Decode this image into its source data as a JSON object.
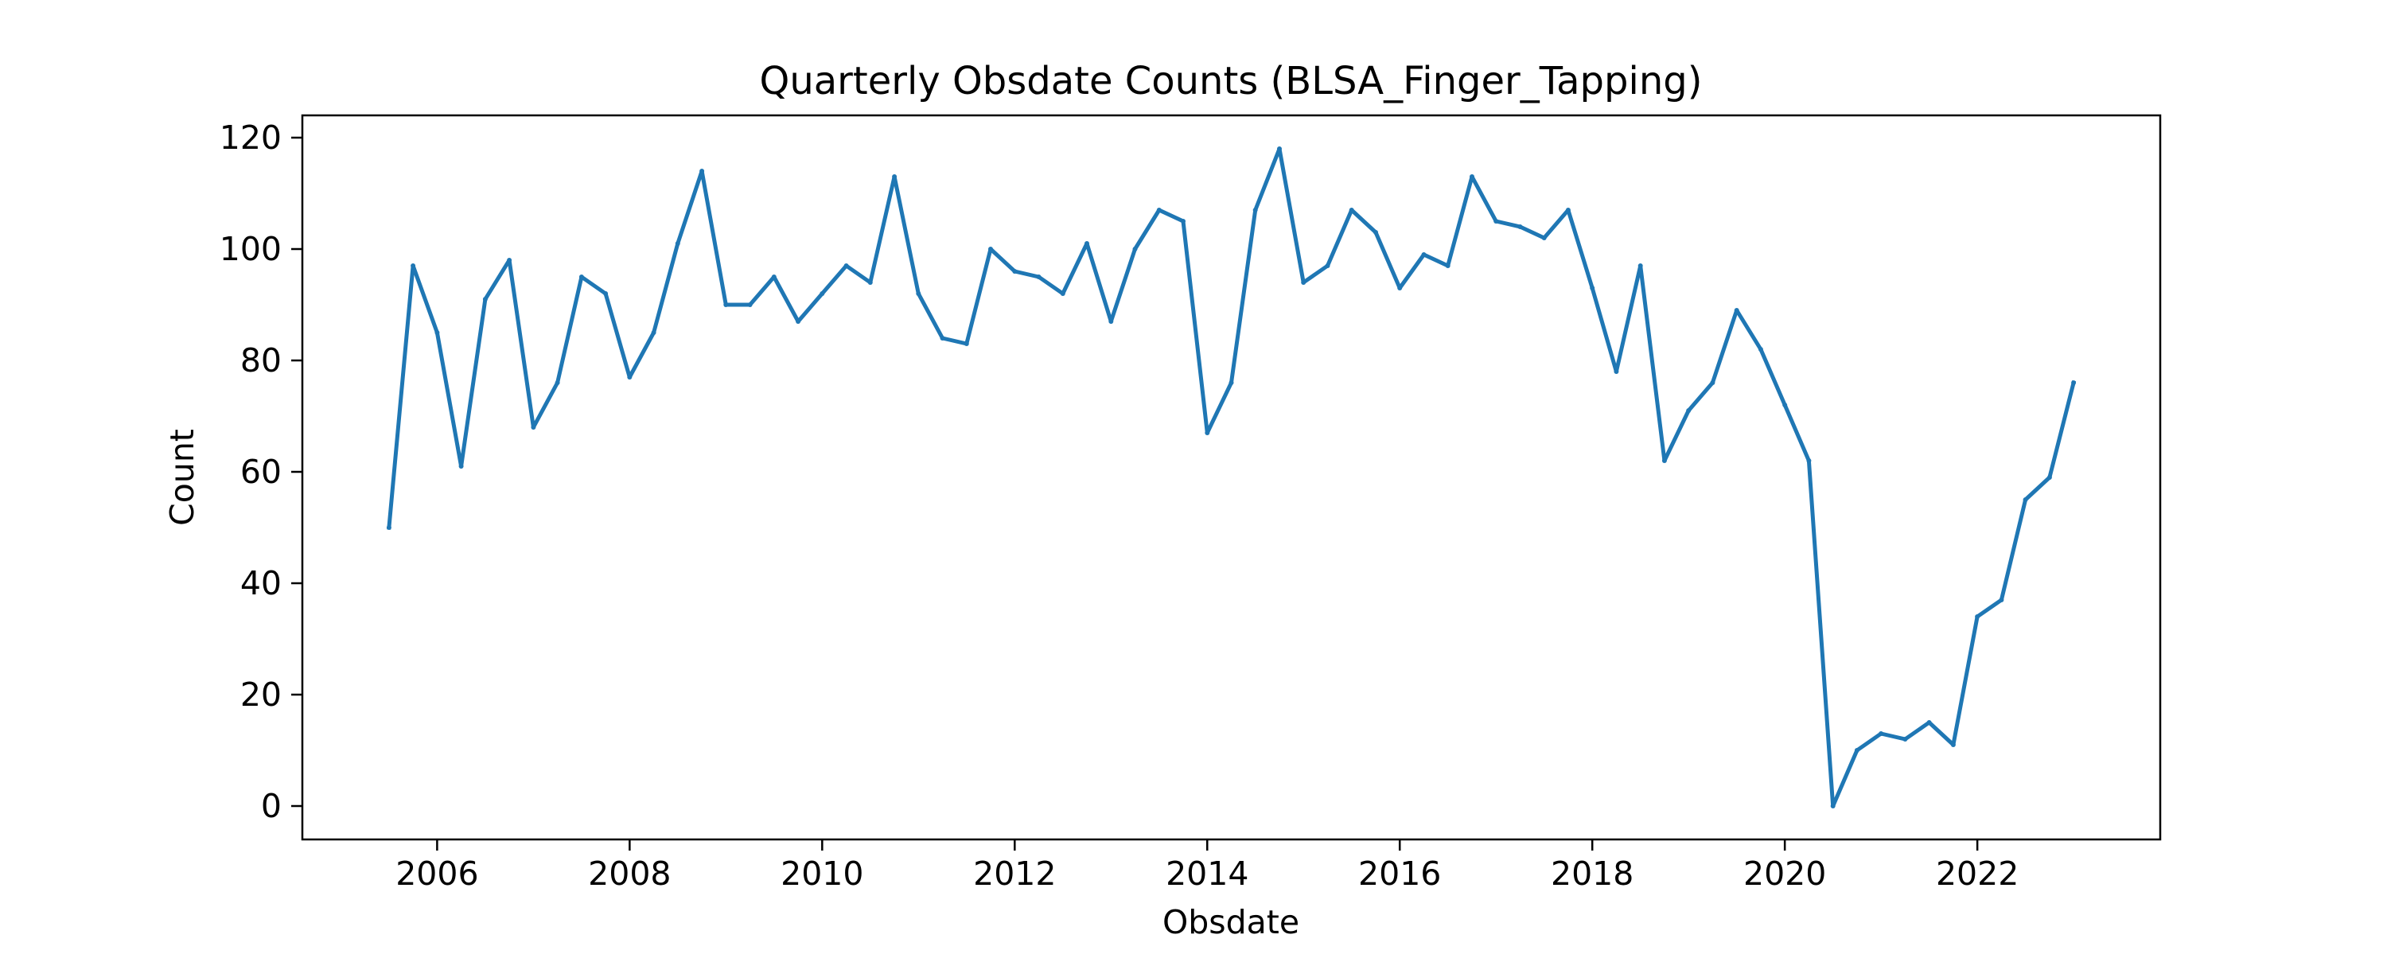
{
  "chart_data": {
    "type": "line",
    "title": "Quarterly Obsdate Counts (BLSA_Finger_Tapping)",
    "xlabel": "Obsdate",
    "ylabel": "Count",
    "xlim": [
      2004.6,
      2023.9
    ],
    "ylim": [
      -6,
      124
    ],
    "x_ticks": [
      2006,
      2008,
      2010,
      2012,
      2014,
      2016,
      2018,
      2020,
      2022
    ],
    "x_tick_labels": [
      "2006",
      "2008",
      "2010",
      "2012",
      "2014",
      "2016",
      "2018",
      "2020",
      "2022"
    ],
    "y_ticks": [
      0,
      20,
      40,
      60,
      80,
      100,
      120
    ],
    "y_tick_labels": [
      "0",
      "20",
      "40",
      "60",
      "80",
      "100",
      "120"
    ],
    "grid": false,
    "line_color": "#1f77b4",
    "series": [
      {
        "x": [
          2005.5,
          2005.75,
          2006.0,
          2006.25,
          2006.5,
          2006.75,
          2007.0,
          2007.25,
          2007.5,
          2007.75,
          2008.0,
          2008.25,
          2008.5,
          2008.75,
          2009.0,
          2009.25,
          2009.5,
          2009.75,
          2010.0,
          2010.25,
          2010.5,
          2010.75,
          2011.0,
          2011.25,
          2011.5,
          2011.75,
          2012.0,
          2012.25,
          2012.5,
          2012.75,
          2013.0,
          2013.25,
          2013.5,
          2013.75,
          2014.0,
          2014.25,
          2014.5,
          2014.75,
          2015.0,
          2015.25,
          2015.5,
          2015.75,
          2016.0,
          2016.25,
          2016.5,
          2016.75,
          2017.0,
          2017.25,
          2017.5,
          2017.75,
          2018.0,
          2018.25,
          2018.5,
          2018.75,
          2019.0,
          2019.25,
          2019.5,
          2019.75,
          2020.0,
          2020.25,
          2020.5,
          2020.75,
          2021.0,
          2021.25,
          2021.5,
          2021.75,
          2022.0,
          2022.25,
          2022.5,
          2022.75,
          2023.0
        ],
        "values": [
          50,
          97,
          85,
          61,
          91,
          98,
          68,
          76,
          95,
          92,
          77,
          85,
          101,
          114,
          90,
          90,
          95,
          87,
          92,
          97,
          94,
          113,
          92,
          84,
          83,
          100,
          96,
          95,
          92,
          101,
          87,
          100,
          107,
          105,
          67,
          76,
          107,
          118,
          94,
          97,
          107,
          103,
          93,
          99,
          97,
          113,
          105,
          104,
          102,
          107,
          93,
          78,
          97,
          62,
          71,
          76,
          89,
          82,
          72,
          62,
          0,
          10,
          13,
          12,
          15,
          11,
          34,
          37,
          55,
          59,
          76
        ]
      }
    ]
  }
}
